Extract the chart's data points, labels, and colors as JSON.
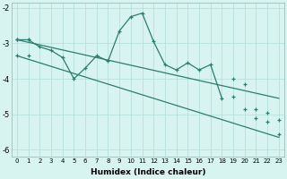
{
  "line1_x": [
    0,
    1,
    2,
    3,
    4,
    5,
    6,
    7,
    8,
    9,
    10,
    11,
    12,
    13,
    14,
    15,
    16,
    17,
    18
  ],
  "line1_y": [
    -2.9,
    -2.9,
    -3.1,
    -3.2,
    -3.4,
    -4.0,
    -3.7,
    -3.35,
    -3.5,
    -2.65,
    -2.25,
    -2.15,
    -2.95,
    -3.6,
    -3.75,
    -3.55,
    -3.75,
    -3.6,
    -4.55
  ],
  "line2_x": [
    0,
    23
  ],
  "line2_y": [
    -2.9,
    -4.55
  ],
  "line3_x": [
    0,
    23
  ],
  "line3_y": [
    -3.35,
    -5.65
  ],
  "marker_line2_x": [
    0,
    1,
    19,
    20,
    21,
    22,
    23
  ],
  "marker_line2_y": [
    -2.9,
    -2.9,
    -4.0,
    -4.15,
    -4.85,
    -4.95,
    -5.15
  ],
  "marker_line3_x": [
    0,
    1,
    19,
    20,
    21,
    22,
    23
  ],
  "marker_line3_y": [
    -3.35,
    -3.35,
    -4.5,
    -4.85,
    -5.1,
    -5.2,
    -5.55
  ],
  "line_color": "#2d7d6e",
  "bg_color": "#d8f4f0",
  "grid_color": "#b0ddd6",
  "xlabel": "Humidex (Indice chaleur)",
  "xlim": [
    -0.5,
    23.5
  ],
  "ylim": [
    -6.2,
    -1.85
  ],
  "yticks": [
    -6,
    -5,
    -4,
    -3,
    -2
  ],
  "xticks": [
    0,
    1,
    2,
    3,
    4,
    5,
    6,
    7,
    8,
    9,
    10,
    11,
    12,
    13,
    14,
    15,
    16,
    17,
    18,
    19,
    20,
    21,
    22,
    23
  ]
}
